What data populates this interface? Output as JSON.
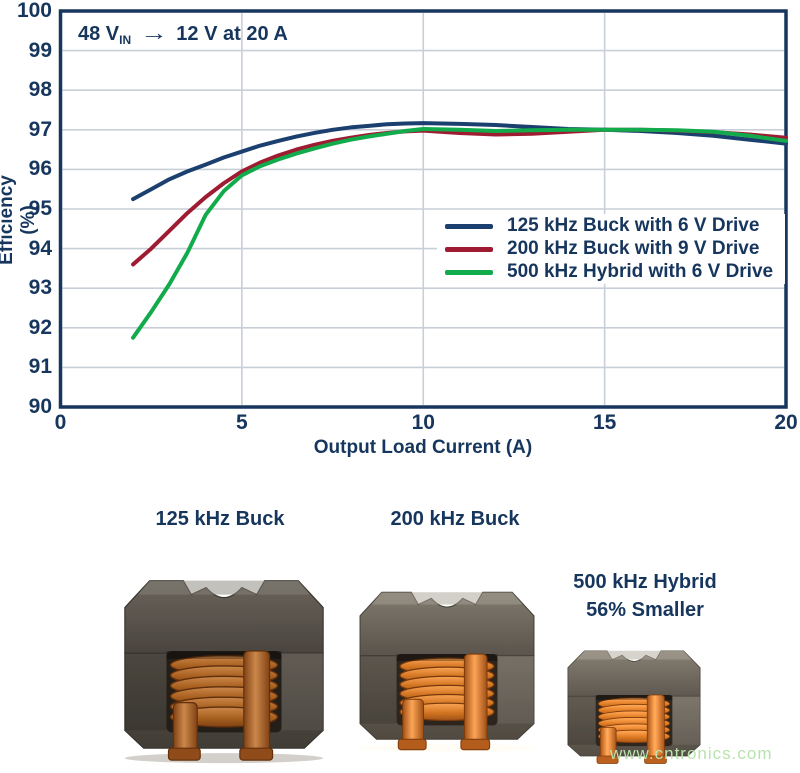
{
  "colors": {
    "navy": "#17365d",
    "grid": "#c9cfd8",
    "frame": "#17365d",
    "series_blue": "#1b3f6e",
    "series_red": "#9e1b32",
    "series_green": "#12ab4c",
    "watermark_green": "#b7e3ac"
  },
  "chart_data": {
    "type": "line",
    "title": "",
    "xlabel": "Output Load Current (A)",
    "ylabel": "Efficiency (%)",
    "xlim": [
      0,
      20
    ],
    "ylim": [
      90,
      100
    ],
    "x_ticks": [
      0,
      5,
      10,
      15,
      20
    ],
    "y_ticks": [
      100,
      99,
      98,
      97,
      96,
      95,
      94,
      93,
      92,
      91,
      90
    ],
    "grid": true,
    "legend_position": "inside-right-middle",
    "annotation": {
      "prefix": "48 V",
      "sub": "IN",
      "arrow_icon": "→",
      "suffix": "12 V at 20 A"
    },
    "series": [
      {
        "name": "125 kHz Buck with 6 V Drive",
        "color": "#1b3f6e",
        "x": [
          2,
          2.5,
          3,
          3.5,
          4,
          4.5,
          5,
          5.5,
          6,
          6.5,
          7,
          7.5,
          8,
          8.5,
          9,
          9.5,
          10,
          11,
          12,
          13,
          14,
          15,
          16,
          17,
          18,
          19,
          20
        ],
        "y": [
          95.25,
          95.5,
          95.75,
          95.95,
          96.12,
          96.3,
          96.45,
          96.6,
          96.72,
          96.83,
          96.92,
          97.0,
          97.06,
          97.1,
          97.14,
          97.16,
          97.17,
          97.15,
          97.12,
          97.07,
          97.02,
          97.0,
          96.97,
          96.92,
          96.85,
          96.75,
          96.65
        ]
      },
      {
        "name": "200 kHz Buck with 9 V Drive",
        "color": "#9e1b32",
        "x": [
          2,
          2.5,
          3,
          3.5,
          4,
          4.5,
          5,
          5.5,
          6,
          6.5,
          7,
          7.5,
          8,
          8.5,
          9,
          9.5,
          10,
          11,
          12,
          13,
          14,
          15,
          16,
          17,
          18,
          19,
          20
        ],
        "y": [
          93.6,
          94.0,
          94.45,
          94.9,
          95.3,
          95.65,
          95.95,
          96.17,
          96.35,
          96.5,
          96.62,
          96.72,
          96.8,
          96.87,
          96.92,
          96.96,
          96.98,
          96.92,
          96.88,
          96.9,
          96.95,
          97.0,
          97.0,
          96.98,
          96.94,
          96.88,
          96.8
        ]
      },
      {
        "name": "500 kHz Hybrid with 6 V Drive",
        "color": "#12ab4c",
        "x": [
          2,
          2.5,
          3,
          3.5,
          4,
          4.5,
          5,
          5.5,
          6,
          6.5,
          7,
          7.5,
          8,
          8.5,
          9,
          9.5,
          10,
          11,
          12,
          13,
          14,
          15,
          16,
          17,
          18,
          19,
          20
        ],
        "y": [
          91.75,
          92.4,
          93.1,
          93.9,
          94.85,
          95.45,
          95.85,
          96.08,
          96.25,
          96.4,
          96.53,
          96.65,
          96.75,
          96.83,
          96.9,
          96.97,
          97.02,
          97.0,
          96.97,
          96.99,
          97.0,
          97.0,
          97.0,
          96.99,
          96.95,
          96.85,
          96.72
        ]
      }
    ]
  },
  "legend": {
    "items": [
      {
        "label": "125 kHz Buck with 6 V Drive"
      },
      {
        "label": "200 kHz Buck with 9 V Drive"
      },
      {
        "label": "500 kHz Hybrid with 6 V Drive"
      }
    ]
  },
  "photo_section": {
    "inductors": [
      {
        "label": "125 kHz Buck"
      },
      {
        "label": "200 kHz Buck"
      },
      {
        "label_line1": "500 kHz Hybrid",
        "label_line2": "56% Smaller"
      }
    ],
    "watermark": "www.cntronics.com"
  }
}
